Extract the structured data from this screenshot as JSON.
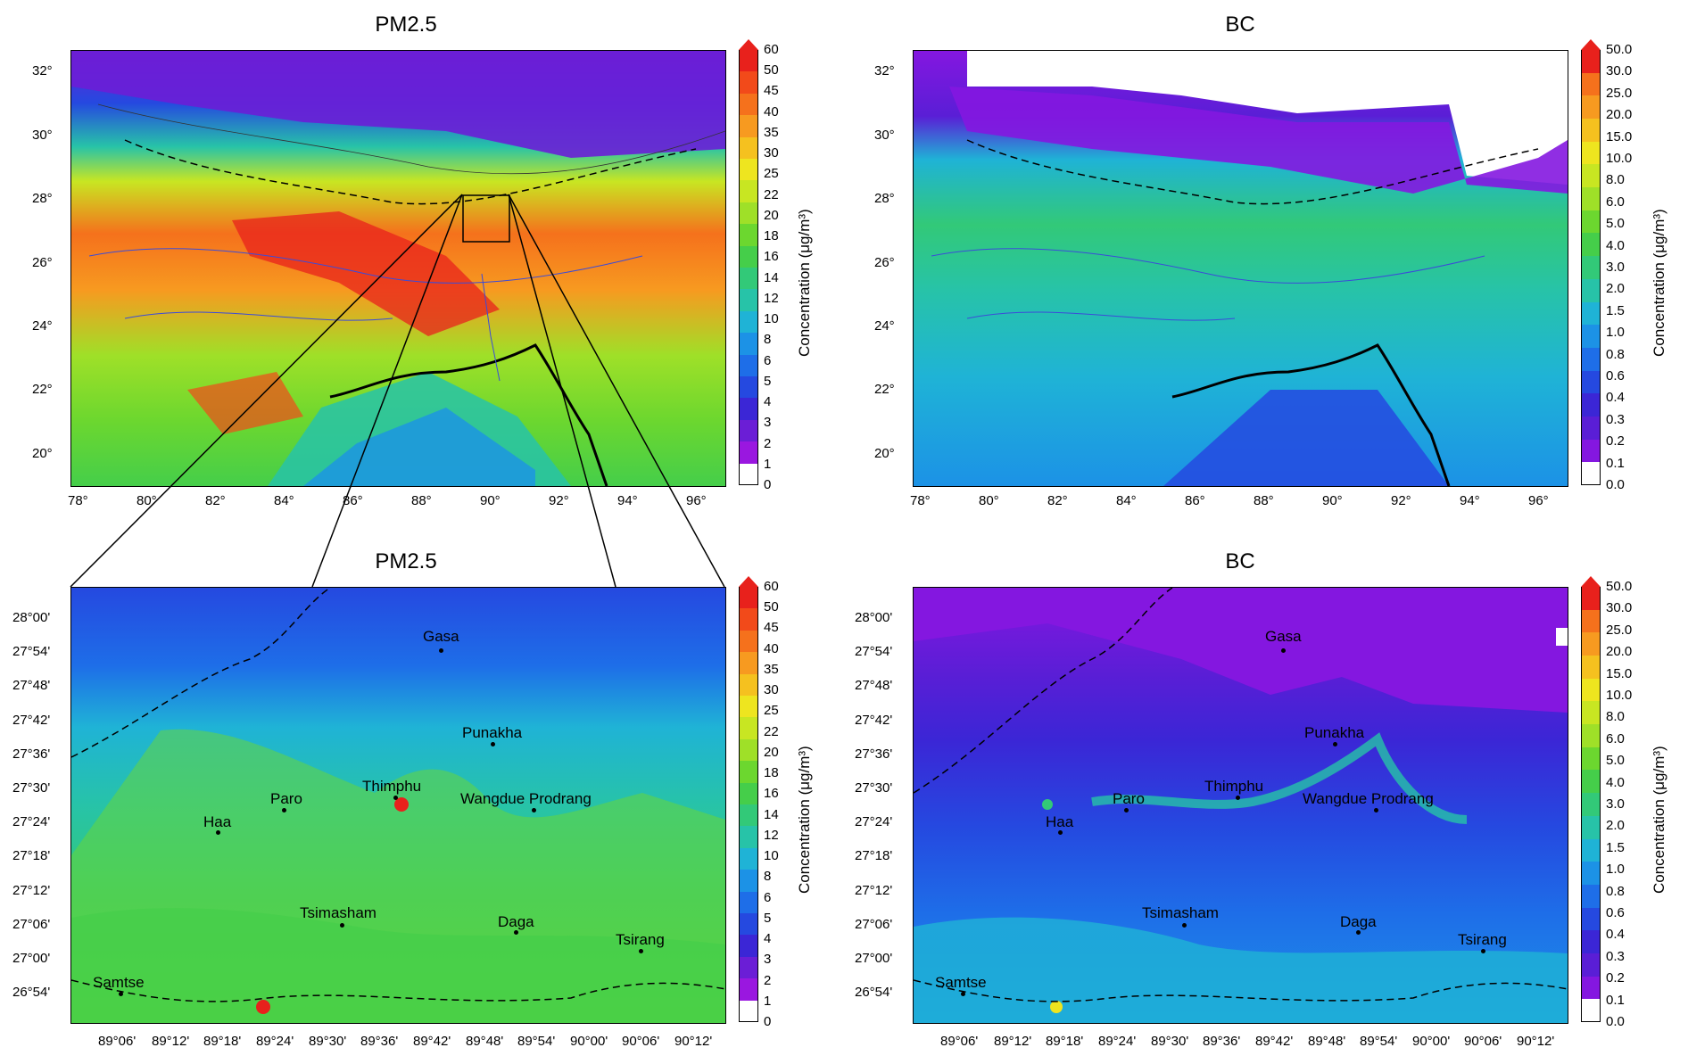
{
  "panels": {
    "tl": {
      "title": "PM2.5"
    },
    "tr": {
      "title": "BC"
    },
    "bl": {
      "title": "PM2.5"
    },
    "br": {
      "title": "BC"
    }
  },
  "top_lat_ticks": [
    "32°",
    "30°",
    "28°",
    "26°",
    "24°",
    "22°",
    "20°"
  ],
  "top_lon_ticks": [
    "78°",
    "80°",
    "82°",
    "84°",
    "86°",
    "88°",
    "90°",
    "92°",
    "94°",
    "96°"
  ],
  "bottom_lat_ticks": [
    "28°00'",
    "27°54'",
    "27°48'",
    "27°42'",
    "27°36'",
    "27°30'",
    "27°24'",
    "27°18'",
    "27°12'",
    "27°06'",
    "27°00'",
    "26°54'"
  ],
  "bottom_lon_ticks": [
    "89°06'",
    "89°12'",
    "89°18'",
    "89°24'",
    "89°30'",
    "89°36'",
    "89°42'",
    "89°48'",
    "89°54'",
    "90°00'",
    "90°06'",
    "90°12'"
  ],
  "colorbar_title": "Concentration (μg/m³)",
  "pm_levels": [
    "60",
    "50",
    "45",
    "40",
    "35",
    "30",
    "25",
    "22",
    "20",
    "18",
    "16",
    "14",
    "12",
    "10",
    "8",
    "6",
    "5",
    "4",
    "3",
    "2",
    "1",
    "0"
  ],
  "bc_levels": [
    "50.0",
    "30.0",
    "25.0",
    "20.0",
    "15.0",
    "10.0",
    "8.0",
    "6.0",
    "5.0",
    "4.0",
    "3.0",
    "2.0",
    "1.5",
    "1.0",
    "0.8",
    "0.6",
    "0.4",
    "0.3",
    "0.2",
    "0.1",
    "0.0"
  ],
  "pm_colors": [
    "#e8211c",
    "#f24a1a",
    "#f5711c",
    "#f79a20",
    "#f5c11f",
    "#eee51f",
    "#c8e622",
    "#9fe028",
    "#6cd72f",
    "#45ce4a",
    "#32c978",
    "#27c3a8",
    "#1fb3d6",
    "#1c92e6",
    "#1e6ee8",
    "#2549e0",
    "#3b26d6",
    "#6b1ed6",
    "#9a17e0",
    "#ffffff"
  ],
  "bc_colors": [
    "#e8211c",
    "#f5711c",
    "#f79a20",
    "#f5c11f",
    "#eee51f",
    "#c8e622",
    "#9fe028",
    "#6cd72f",
    "#45ce4a",
    "#32c978",
    "#27c3a8",
    "#1fb3d6",
    "#1c92e6",
    "#1e6ee8",
    "#2549e0",
    "#3b26d6",
    "#5a1ed6",
    "#8417e0",
    "#ffffff"
  ],
  "cities": [
    {
      "name": "Gasa"
    },
    {
      "name": "Punakha"
    },
    {
      "name": "Paro"
    },
    {
      "name": "Thimphu"
    },
    {
      "name": "Wangdue Prodrang"
    },
    {
      "name": "Haa"
    },
    {
      "name": "Tsimasham"
    },
    {
      "name": "Daga"
    },
    {
      "name": "Tsirang"
    },
    {
      "name": "Samtse"
    }
  ]
}
